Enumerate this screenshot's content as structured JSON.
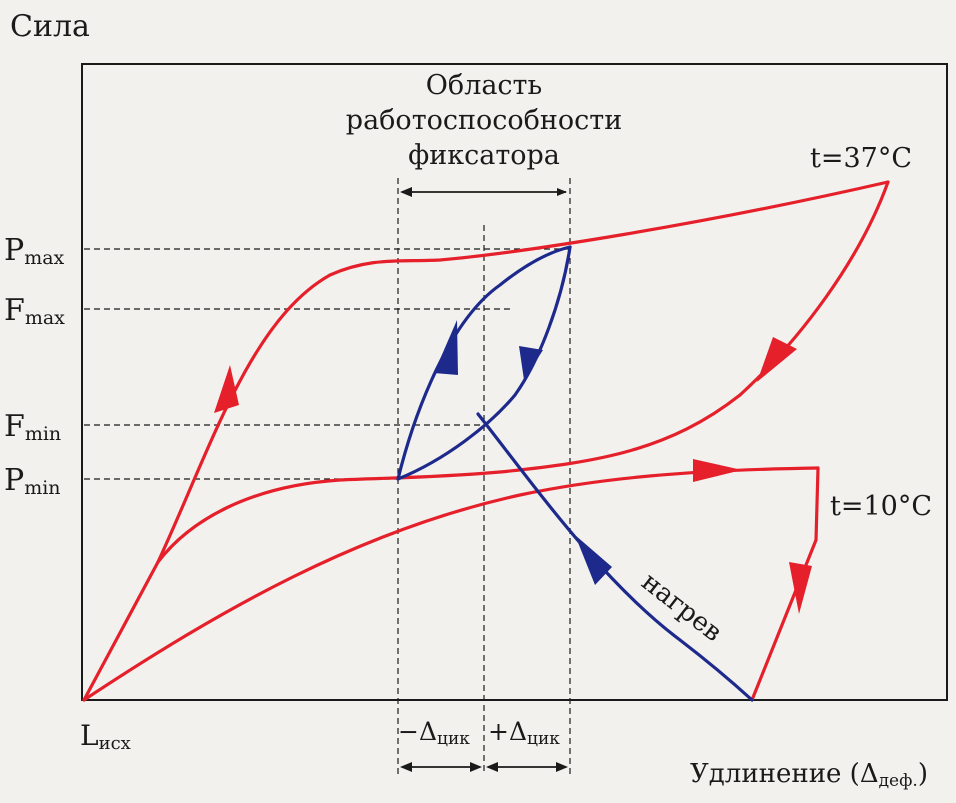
{
  "diagram": {
    "y_axis_title": "Сила",
    "x_axis_title": {
      "main": "Удлинение (Δ",
      "sub": "деф.",
      "end": ")"
    },
    "region_label": [
      "Область",
      "работоспособности",
      "фиксатора"
    ],
    "force_levels": [
      {
        "id": "p-max",
        "main": "P",
        "sub": "max"
      },
      {
        "id": "f-max",
        "main": "F",
        "sub": "max"
      },
      {
        "id": "f-min",
        "main": "F",
        "sub": "min"
      },
      {
        "id": "p-min",
        "main": "P",
        "sub": "min"
      }
    ],
    "origin_label": {
      "main": "L",
      "sub": "исх"
    },
    "temp_high": "t=37°C",
    "temp_low": "t=10°C",
    "heating_label": "нагрев",
    "delta_minus": {
      "main": "−Δ",
      "sub": "цик"
    },
    "delta_plus": {
      "main": "+Δ",
      "sub": "цик"
    },
    "colors": {
      "hot_curve": "#e5202b",
      "cycle_curve": "#1d2a8c",
      "frame": "#1a1a1a",
      "background": "#f2f1ee"
    }
  }
}
